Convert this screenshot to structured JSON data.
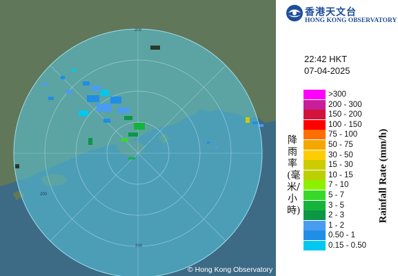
{
  "header": {
    "org_chinese": "香港天文台",
    "org_english": "HONG KONG OBSERVATORY"
  },
  "timestamp": {
    "time": "22:42 HKT",
    "date": "07-04-2025"
  },
  "map": {
    "ring_labels": [
      "200",
      "200",
      "200"
    ],
    "copyright": "© Hong Kong Observatory",
    "land_color": "#61775a",
    "sea_color": "#3d6b86",
    "radar_coverage_color": "#5ac8e0"
  },
  "legend": {
    "title_english": "Rainfall Rate (mm/h)",
    "title_chinese": "降雨率(毫米/小時)",
    "items": [
      {
        "label": ">300",
        "color": "#ff00ff"
      },
      {
        "label": "200 - 300",
        "color": "#c81e9a"
      },
      {
        "label": "150 - 200",
        "color": "#d2143c"
      },
      {
        "label": "100 - 150",
        "color": "#ff0000"
      },
      {
        "label": "75 - 100",
        "color": "#ff6e00"
      },
      {
        "label": "50 - 75",
        "color": "#f5a700"
      },
      {
        "label": "30 - 50",
        "color": "#ffcc00"
      },
      {
        "label": "15 - 30",
        "color": "#cccc00"
      },
      {
        "label": "10 - 15",
        "color": "#bcd000"
      },
      {
        "label": "7 - 10",
        "color": "#8cf000"
      },
      {
        "label": "5 - 7",
        "color": "#38d828"
      },
      {
        "label": "3 - 5",
        "color": "#14b43c"
      },
      {
        "label": "2 - 3",
        "color": "#0c9646"
      },
      {
        "label": "1 - 2",
        "color": "#4a9cf0"
      },
      {
        "label": "0.50 - 1",
        "color": "#1f8ee6"
      },
      {
        "label": "0.15 - 0.50",
        "color": "#00c8f0"
      }
    ]
  }
}
